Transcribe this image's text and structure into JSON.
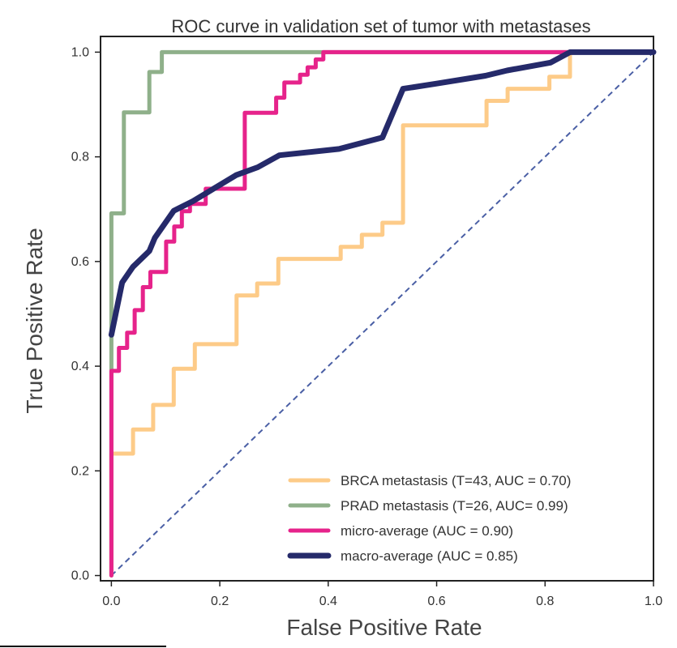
{
  "chart_data": {
    "type": "line",
    "title": "ROC curve in validation set of tumor with metastases",
    "xlabel": "False Positive Rate",
    "ylabel": "True Positive Rate",
    "xlim": [
      -0.02,
      1.0
    ],
    "ylim": [
      -0.01,
      1.03
    ],
    "xticks": [
      0.0,
      0.2,
      0.4,
      0.6,
      0.8,
      1.0
    ],
    "xtick_labels": [
      "0.0",
      "0.2",
      "0.4",
      "0.6",
      "0.8",
      "1.0"
    ],
    "yticks": [
      0.0,
      0.2,
      0.4,
      0.6,
      0.8,
      1.0
    ],
    "ytick_labels": [
      "0.0",
      "0.2",
      "0.4",
      "0.6",
      "0.8",
      "1.0"
    ],
    "grid": false,
    "legend_position": "lower-right",
    "diagonal": {
      "x": [
        0,
        1
      ],
      "y": [
        0,
        1
      ],
      "color": "#4a5fa5",
      "style": "dashed"
    },
    "series": [
      {
        "name": "BRCA metastasis (T=43, AUC = 0.70)",
        "color": "#fdcb88",
        "width": 5,
        "x": [
          0.0,
          0.0,
          0.04,
          0.04,
          0.077,
          0.077,
          0.115,
          0.115,
          0.154,
          0.154,
          0.231,
          0.231,
          0.269,
          0.269,
          0.308,
          0.308,
          0.423,
          0.423,
          0.462,
          0.462,
          0.5,
          0.5,
          0.538,
          0.538,
          0.692,
          0.692,
          0.731,
          0.731,
          0.808,
          0.808,
          0.846,
          0.846,
          1.0
        ],
        "y": [
          0.0,
          0.233,
          0.233,
          0.279,
          0.279,
          0.326,
          0.326,
          0.395,
          0.395,
          0.442,
          0.442,
          0.535,
          0.535,
          0.558,
          0.558,
          0.605,
          0.605,
          0.628,
          0.628,
          0.651,
          0.651,
          0.674,
          0.674,
          0.86,
          0.86,
          0.907,
          0.907,
          0.93,
          0.93,
          0.953,
          0.953,
          1.0,
          1.0
        ]
      },
      {
        "name": "PRAD metastasis (T=26, AUC= 0.99)",
        "color": "#8fb08a",
        "width": 5,
        "x": [
          0.0,
          0.0,
          0.023,
          0.023,
          0.07,
          0.07,
          0.093,
          0.093,
          1.0
        ],
        "y": [
          0.0,
          0.692,
          0.692,
          0.885,
          0.885,
          0.962,
          0.962,
          1.0,
          1.0
        ]
      },
      {
        "name": "micro-average (AUC = 0.90)",
        "color": "#e6238b",
        "width": 5,
        "x": [
          0.0,
          0.0,
          0.014,
          0.014,
          0.029,
          0.029,
          0.043,
          0.043,
          0.058,
          0.058,
          0.072,
          0.072,
          0.087,
          0.087,
          0.101,
          0.101,
          0.116,
          0.116,
          0.13,
          0.13,
          0.145,
          0.145,
          0.174,
          0.174,
          0.232,
          0.232,
          0.246,
          0.246,
          0.304,
          0.304,
          0.319,
          0.319,
          0.333,
          0.333,
          0.348,
          0.348,
          0.362,
          0.362,
          0.377,
          0.377,
          0.391,
          0.391,
          1.0
        ],
        "y": [
          0.0,
          0.391,
          0.391,
          0.435,
          0.435,
          0.464,
          0.464,
          0.507,
          0.507,
          0.551,
          0.551,
          0.58,
          0.58,
          0.58,
          0.58,
          0.638,
          0.638,
          0.667,
          0.667,
          0.696,
          0.696,
          0.71,
          0.71,
          0.739,
          0.739,
          0.739,
          0.739,
          0.884,
          0.884,
          0.913,
          0.913,
          0.942,
          0.942,
          0.942,
          0.942,
          0.957,
          0.957,
          0.971,
          0.971,
          0.986,
          0.986,
          1.0,
          1.0
        ]
      },
      {
        "name": "macro-average (AUC = 0.85)",
        "color": "#252a6a",
        "width": 7,
        "x": [
          0.0,
          0.02,
          0.04,
          0.07,
          0.08,
          0.115,
          0.15,
          0.19,
          0.23,
          0.27,
          0.31,
          0.42,
          0.5,
          0.538,
          0.6,
          0.69,
          0.73,
          0.81,
          0.846,
          1.0
        ],
        "y": [
          0.46,
          0.56,
          0.59,
          0.62,
          0.645,
          0.697,
          0.715,
          0.74,
          0.765,
          0.78,
          0.803,
          0.815,
          0.837,
          0.93,
          0.94,
          0.955,
          0.965,
          0.98,
          1.0,
          1.0
        ]
      }
    ]
  }
}
